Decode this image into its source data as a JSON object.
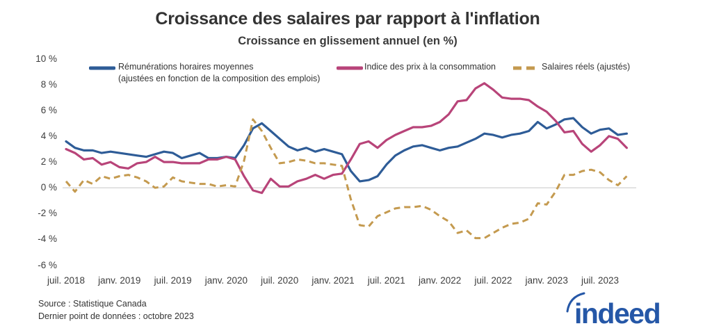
{
  "header": {
    "title": "Croissance des salaires par rapport à l'inflation",
    "subtitle": "Croissance en glissement annuel (en %)"
  },
  "footer": {
    "source_line": "Source : Statistique Canada",
    "last_data_line": "Dernier point de données : octobre 2023"
  },
  "branding": {
    "logo_text": "indeed",
    "logo_color": "#2557a7"
  },
  "chart_data": {
    "type": "line",
    "title": "Croissance des salaires par rapport à l'inflation",
    "subtitle": "Croissance en glissement annuel (en %)",
    "frequency": "monthly",
    "x_start_label": "juil. 2018",
    "x_end_label": "octobre 2023",
    "x_tick_labels": [
      "juil. 2018",
      "janv. 2019",
      "juil. 2019",
      "janv. 2020",
      "juil. 2020",
      "janv. 2021",
      "juil. 2021",
      "janv. 2022",
      "juil. 2022",
      "janv. 2023",
      "juil. 2023"
    ],
    "x_tick_month_indices": [
      0,
      6,
      12,
      18,
      24,
      30,
      36,
      42,
      48,
      54,
      60
    ],
    "y_tick_labels": [
      "10 %",
      "8 %",
      "6 %",
      "4 %",
      "2 %",
      "0 %",
      "-2 %",
      "-4 %",
      "-6 %"
    ],
    "y_tick_values": [
      10,
      8,
      6,
      4,
      2,
      0,
      -2,
      -4,
      -6
    ],
    "ylim": [
      -6,
      10
    ],
    "grid": "zero-line-only",
    "zero_line_color": "#d9d9d9",
    "legend_position": "top-inside",
    "series": [
      {
        "name": "Rémunérations horaires moyennes (ajustées en fonction de la composition des emplois)",
        "legend_lines": [
          "Rémunérations horaires moyennes",
          "(ajustées en fonction de la composition des emplois)"
        ],
        "color": "#2e5c97",
        "line_style": "solid",
        "values": [
          3.6,
          3.1,
          2.9,
          2.9,
          2.7,
          2.8,
          2.7,
          2.6,
          2.5,
          2.4,
          2.6,
          2.8,
          2.7,
          2.3,
          2.5,
          2.7,
          2.3,
          2.3,
          2.4,
          2.3,
          3.3,
          4.6,
          5.0,
          4.4,
          3.8,
          3.2,
          2.9,
          3.1,
          2.8,
          3.0,
          2.8,
          2.6,
          1.3,
          0.5,
          0.6,
          0.9,
          1.8,
          2.5,
          2.9,
          3.2,
          3.3,
          3.1,
          2.9,
          3.1,
          3.2,
          3.5,
          3.8,
          4.2,
          4.1,
          3.9,
          4.1,
          4.2,
          4.4,
          5.1,
          4.6,
          4.9,
          5.3,
          5.4,
          4.7,
          4.2,
          4.5,
          4.6,
          4.1,
          4.2
        ]
      },
      {
        "name": "Indice des prix à la consommation",
        "legend_lines": [
          "Indice des prix à la consommation"
        ],
        "color": "#b84479",
        "line_style": "solid",
        "values": [
          3.0,
          2.7,
          2.2,
          2.3,
          1.8,
          2.0,
          1.6,
          1.5,
          1.9,
          2.0,
          2.4,
          2.0,
          2.0,
          1.9,
          1.9,
          1.9,
          2.2,
          2.2,
          2.4,
          2.2,
          0.9,
          -0.2,
          -0.4,
          0.7,
          0.1,
          0.1,
          0.5,
          0.7,
          1.0,
          0.7,
          1.0,
          1.1,
          2.2,
          3.4,
          3.6,
          3.1,
          3.7,
          4.1,
          4.4,
          4.7,
          4.7,
          4.8,
          5.1,
          5.7,
          6.7,
          6.8,
          7.7,
          8.1,
          7.6,
          7.0,
          6.9,
          6.9,
          6.8,
          6.3,
          5.9,
          5.2,
          4.3,
          4.4,
          3.4,
          2.8,
          3.3,
          4.0,
          3.8,
          3.1
        ]
      },
      {
        "name": "Salaires réels (ajustés)",
        "legend_lines": [
          "Salaires réels (ajustés)"
        ],
        "color": "#c49a4f",
        "line_style": "dashed",
        "values": [
          0.5,
          -0.3,
          0.6,
          0.3,
          0.9,
          0.7,
          0.9,
          1.0,
          0.8,
          0.5,
          0.0,
          0.1,
          0.8,
          0.5,
          0.4,
          0.3,
          0.3,
          0.1,
          0.2,
          0.1,
          2.1,
          5.3,
          4.4,
          3.1,
          1.9,
          2.0,
          2.2,
          2.1,
          1.9,
          1.9,
          1.8,
          1.7,
          -0.9,
          -2.9,
          -3.0,
          -2.2,
          -1.9,
          -1.6,
          -1.5,
          -1.5,
          -1.4,
          -1.7,
          -2.2,
          -2.6,
          -3.5,
          -3.3,
          -3.9,
          -3.9,
          -3.5,
          -3.1,
          -2.8,
          -2.7,
          -2.4,
          -1.2,
          -1.3,
          -0.3,
          1.0,
          1.0,
          1.3,
          1.4,
          1.2,
          0.6,
          0.2,
          0.9
        ]
      }
    ]
  }
}
